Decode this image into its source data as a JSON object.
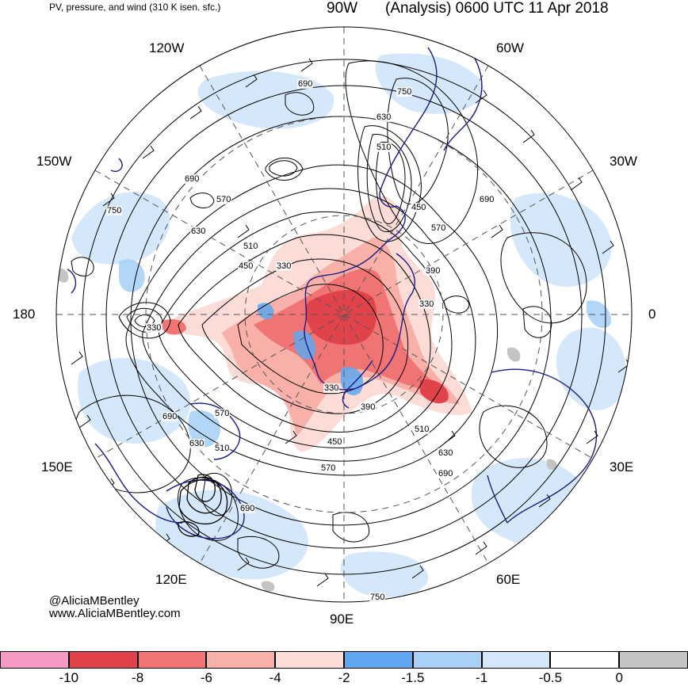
{
  "header": {
    "left_title": "PV, pressure, and wind (310 K isen. sfc.)",
    "right_title": "(Analysis) 0600 UTC 11 Apr 2018"
  },
  "longitude_labels": {
    "90W": "90W",
    "60W": "60W",
    "30W": "30W",
    "0": "0",
    "30E": "30E",
    "60E": "60E",
    "90E": "90E",
    "120E": "120E",
    "150E": "150E",
    "180": "180",
    "150W": "150W",
    "120W": "120W"
  },
  "isobar_labels": [
    "690",
    "750",
    "630",
    "510",
    "450",
    "570",
    "690",
    "570",
    "750",
    "630",
    "510",
    "450",
    "330",
    "330",
    "390",
    "330",
    "330",
    "390",
    "510",
    "450",
    "570",
    "630",
    "690",
    "570",
    "690",
    "630",
    "510",
    "690",
    "750",
    "690"
  ],
  "credits": {
    "handle": "@AliciaMBentley",
    "url": "www.AliciaMBentley.com"
  },
  "colorbar": {
    "colors": [
      "#f59ac6",
      "#e0434a",
      "#f17474",
      "#f8b0a8",
      "#fbdcd7",
      "#5fa8f0",
      "#a9d1f7",
      "#d3e6fa",
      "#ffffff",
      "#c4c4c4"
    ],
    "labels": [
      "-10",
      "-8",
      "-6",
      "-4",
      "-2",
      "-1.5",
      "-1",
      "-0.5",
      "0"
    ]
  },
  "colors": {
    "coast": "#1a1a8a",
    "contour": "#000000",
    "grid": "#555555"
  }
}
